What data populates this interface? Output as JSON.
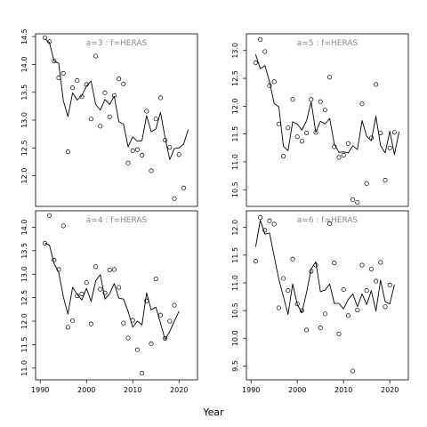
{
  "figure": {
    "xlabel": "Year"
  },
  "chart_data": [
    {
      "type": "line",
      "title": "a=3 : f=HERAS",
      "xlim": [
        1989,
        2024
      ],
      "ylim": [
        11.45,
        14.55
      ],
      "xticks": [],
      "yticks": [
        12.0,
        12.5,
        13.0,
        13.5,
        14.0,
        14.5
      ],
      "ytick_labels": [
        "12.0",
        "12.5",
        "13.0",
        "13.5",
        "14.0",
        "14.5"
      ],
      "series": [
        {
          "kind": "points",
          "x": [
            1991,
            1992,
            1993,
            1994,
            1995,
            1996,
            1997,
            1998,
            1999,
            2000,
            2001,
            2002,
            2003,
            2004,
            2005,
            2006,
            2007,
            2008,
            2009,
            2010,
            2011,
            2012,
            2013,
            2014,
            2015,
            2016,
            2017,
            2018,
            2019,
            2020,
            2021,
            2022
          ],
          "y": [
            14.48,
            14.41,
            14.06,
            13.76,
            13.84,
            12.43,
            13.58,
            13.71,
            13.42,
            13.64,
            13.02,
            14.15,
            12.89,
            13.49,
            13.06,
            13.44,
            13.74,
            13.65,
            12.23,
            12.45,
            12.47,
            12.37,
            13.16,
            12.09,
            13.02,
            13.4,
            12.64,
            12.51,
            11.59,
            12.38,
            11.78,
            null
          ]
        },
        {
          "kind": "line",
          "x": [
            1991,
            1992,
            1993,
            1994,
            1995,
            1996,
            1997,
            1998,
            1999,
            2000,
            2001,
            2002,
            2003,
            2004,
            2005,
            2006,
            2007,
            2008,
            2009,
            2010,
            2011,
            2012,
            2013,
            2014,
            2015,
            2016,
            2017,
            2018,
            2019,
            2020,
            2021,
            2022
          ],
          "y": [
            14.46,
            14.39,
            14.06,
            14.02,
            13.35,
            13.06,
            13.49,
            13.36,
            13.44,
            13.61,
            13.7,
            13.28,
            13.18,
            13.37,
            13.28,
            13.43,
            12.97,
            12.93,
            12.52,
            12.7,
            12.62,
            12.63,
            13.08,
            12.79,
            12.84,
            13.14,
            12.68,
            12.29,
            12.49,
            12.5,
            12.57,
            12.83
          ]
        }
      ]
    },
    {
      "type": "line",
      "title": "a=5 : f=HERAS",
      "xlim": [
        1989,
        2024
      ],
      "ylim": [
        10.2,
        13.3
      ],
      "xticks": [],
      "yticks": [
        10.5,
        11.0,
        11.5,
        12.0,
        12.5,
        13.0
      ],
      "ytick_labels": [
        "10.5",
        "11.0",
        "11.5",
        "12.0",
        "12.5",
        "13.0"
      ],
      "series": [
        {
          "kind": "points",
          "x": [
            1991,
            1992,
            1993,
            1994,
            1995,
            1996,
            1997,
            1998,
            1999,
            2000,
            2001,
            2002,
            2003,
            2004,
            2005,
            2006,
            2007,
            2008,
            2009,
            2010,
            2011,
            2012,
            2013,
            2014,
            2015,
            2016,
            2017,
            2018,
            2019,
            2020,
            2021,
            2022
          ],
          "y": [
            12.78,
            13.2,
            12.98,
            12.37,
            12.44,
            11.68,
            11.1,
            11.61,
            12.12,
            11.45,
            11.37,
            11.52,
            12.12,
            11.53,
            12.08,
            11.93,
            12.52,
            11.27,
            11.08,
            11.12,
            11.33,
            10.32,
            10.27,
            12.04,
            10.61,
            11.43,
            12.39,
            11.52,
            10.67,
            11.25,
            11.53,
            null
          ]
        },
        {
          "kind": "line",
          "x": [
            1991,
            1992,
            1993,
            1994,
            1995,
            1996,
            1997,
            1998,
            1999,
            2000,
            2001,
            2002,
            2003,
            2004,
            2005,
            2006,
            2007,
            2008,
            2009,
            2010,
            2011,
            2012,
            2013,
            2014,
            2015,
            2016,
            2017,
            2018,
            2019,
            2020,
            2021,
            2022
          ],
          "y": [
            12.93,
            12.67,
            12.73,
            12.44,
            12.05,
            11.99,
            11.28,
            11.2,
            11.72,
            11.68,
            11.57,
            11.74,
            12.08,
            11.53,
            11.73,
            11.68,
            11.78,
            11.32,
            11.17,
            11.18,
            11.16,
            11.29,
            11.22,
            11.74,
            11.46,
            11.38,
            11.82,
            11.29,
            11.16,
            11.55,
            11.13,
            11.54
          ]
        }
      ]
    },
    {
      "type": "line",
      "title": "a=4 : f=HERAS",
      "xlim": [
        1989,
        2024
      ],
      "ylim": [
        10.75,
        14.35
      ],
      "xticks": [
        1990,
        2000,
        2010,
        2020
      ],
      "xtick_labels": [
        "1990",
        "2000",
        "2010",
        "2020"
      ],
      "yticks": [
        11.0,
        11.5,
        12.0,
        12.5,
        13.0,
        13.5,
        14.0
      ],
      "ytick_labels": [
        "11.0",
        "11.5",
        "12.0",
        "12.5",
        "13.0",
        "13.5",
        "14.0"
      ],
      "series": [
        {
          "kind": "points",
          "x": [
            1991,
            1992,
            1993,
            1994,
            1995,
            1996,
            1997,
            1998,
            1999,
            2000,
            2001,
            2002,
            2003,
            2004,
            2005,
            2006,
            2007,
            2008,
            2009,
            2010,
            2011,
            2012,
            2013,
            2014,
            2015,
            2016,
            2017,
            2018,
            2019,
            2020,
            2021,
            2022
          ],
          "y": [
            13.66,
            14.25,
            13.3,
            13.1,
            14.03,
            11.87,
            12.01,
            12.54,
            12.58,
            12.82,
            11.94,
            13.16,
            12.68,
            12.6,
            13.09,
            13.1,
            12.72,
            11.96,
            11.64,
            12.02,
            11.39,
            10.89,
            12.43,
            11.52,
            12.9,
            12.13,
            11.63,
            12.0,
            12.34,
            null,
            null,
            null
          ]
        },
        {
          "kind": "line",
          "x": [
            1991,
            1992,
            1993,
            1994,
            1995,
            1996,
            1997,
            1998,
            1999,
            2000,
            2001,
            2002,
            2003,
            2004,
            2005,
            2006,
            2007,
            2008,
            2009,
            2010,
            2011,
            2012,
            2013,
            2014,
            2015,
            2016,
            2017,
            2018,
            2019,
            2020,
            2021,
            2022
          ],
          "y": [
            13.66,
            13.62,
            13.23,
            13.04,
            12.52,
            12.15,
            12.72,
            12.57,
            12.45,
            12.7,
            12.42,
            12.86,
            12.99,
            12.47,
            12.58,
            12.8,
            12.49,
            12.47,
            12.21,
            11.87,
            12.0,
            11.92,
            12.6,
            12.24,
            12.3,
            11.96,
            11.61,
            11.78,
            12.0,
            12.21,
            null,
            null
          ]
        }
      ]
    },
    {
      "type": "line",
      "title": "a=6 : f=HERAS",
      "xlim": [
        1989,
        2024
      ],
      "ylim": [
        9.25,
        12.3
      ],
      "xticks": [
        1990,
        2000,
        2010,
        2020
      ],
      "xtick_labels": [
        "1990",
        "2000",
        "2010",
        "2020"
      ],
      "yticks": [
        9.5,
        10.0,
        10.5,
        11.0,
        11.5,
        12.0
      ],
      "ytick_labels": [
        "9.5",
        "10.0",
        "10.5",
        "11.0",
        "11.5",
        "12.0"
      ],
      "series": [
        {
          "kind": "points",
          "x": [
            1991,
            1992,
            1993,
            1994,
            1995,
            1996,
            1997,
            1998,
            1999,
            2000,
            2001,
            2002,
            2003,
            2004,
            2005,
            2006,
            2007,
            2008,
            2009,
            2010,
            2011,
            2012,
            2013,
            2014,
            2015,
            2016,
            2017,
            2018,
            2019,
            2020,
            2021,
            2022
          ],
          "y": [
            11.39,
            12.18,
            11.95,
            12.12,
            12.06,
            10.55,
            11.08,
            10.86,
            11.43,
            10.62,
            10.5,
            10.15,
            11.21,
            11.32,
            10.19,
            10.44,
            12.07,
            11.36,
            10.08,
            10.88,
            10.41,
            9.41,
            10.51,
            11.32,
            10.86,
            11.25,
            11.03,
            11.37,
            10.57,
            10.96,
            null,
            null
          ]
        },
        {
          "kind": "line",
          "x": [
            1991,
            1992,
            1993,
            1994,
            1995,
            1996,
            1997,
            1998,
            1999,
            2000,
            2001,
            2002,
            2003,
            2004,
            2005,
            2006,
            2007,
            2008,
            2009,
            2010,
            2011,
            2012,
            2013,
            2014,
            2015,
            2016,
            2017,
            2018,
            2019,
            2020,
            2021,
            2022
          ],
          "y": [
            11.65,
            12.13,
            11.88,
            11.9,
            11.48,
            11.07,
            10.75,
            10.43,
            10.98,
            10.61,
            10.46,
            10.83,
            11.25,
            11.38,
            10.84,
            10.87,
            10.98,
            10.63,
            10.63,
            10.53,
            10.7,
            10.8,
            10.57,
            10.8,
            10.61,
            10.86,
            10.49,
            11.05,
            10.66,
            10.62,
            10.97,
            null
          ]
        }
      ]
    }
  ]
}
